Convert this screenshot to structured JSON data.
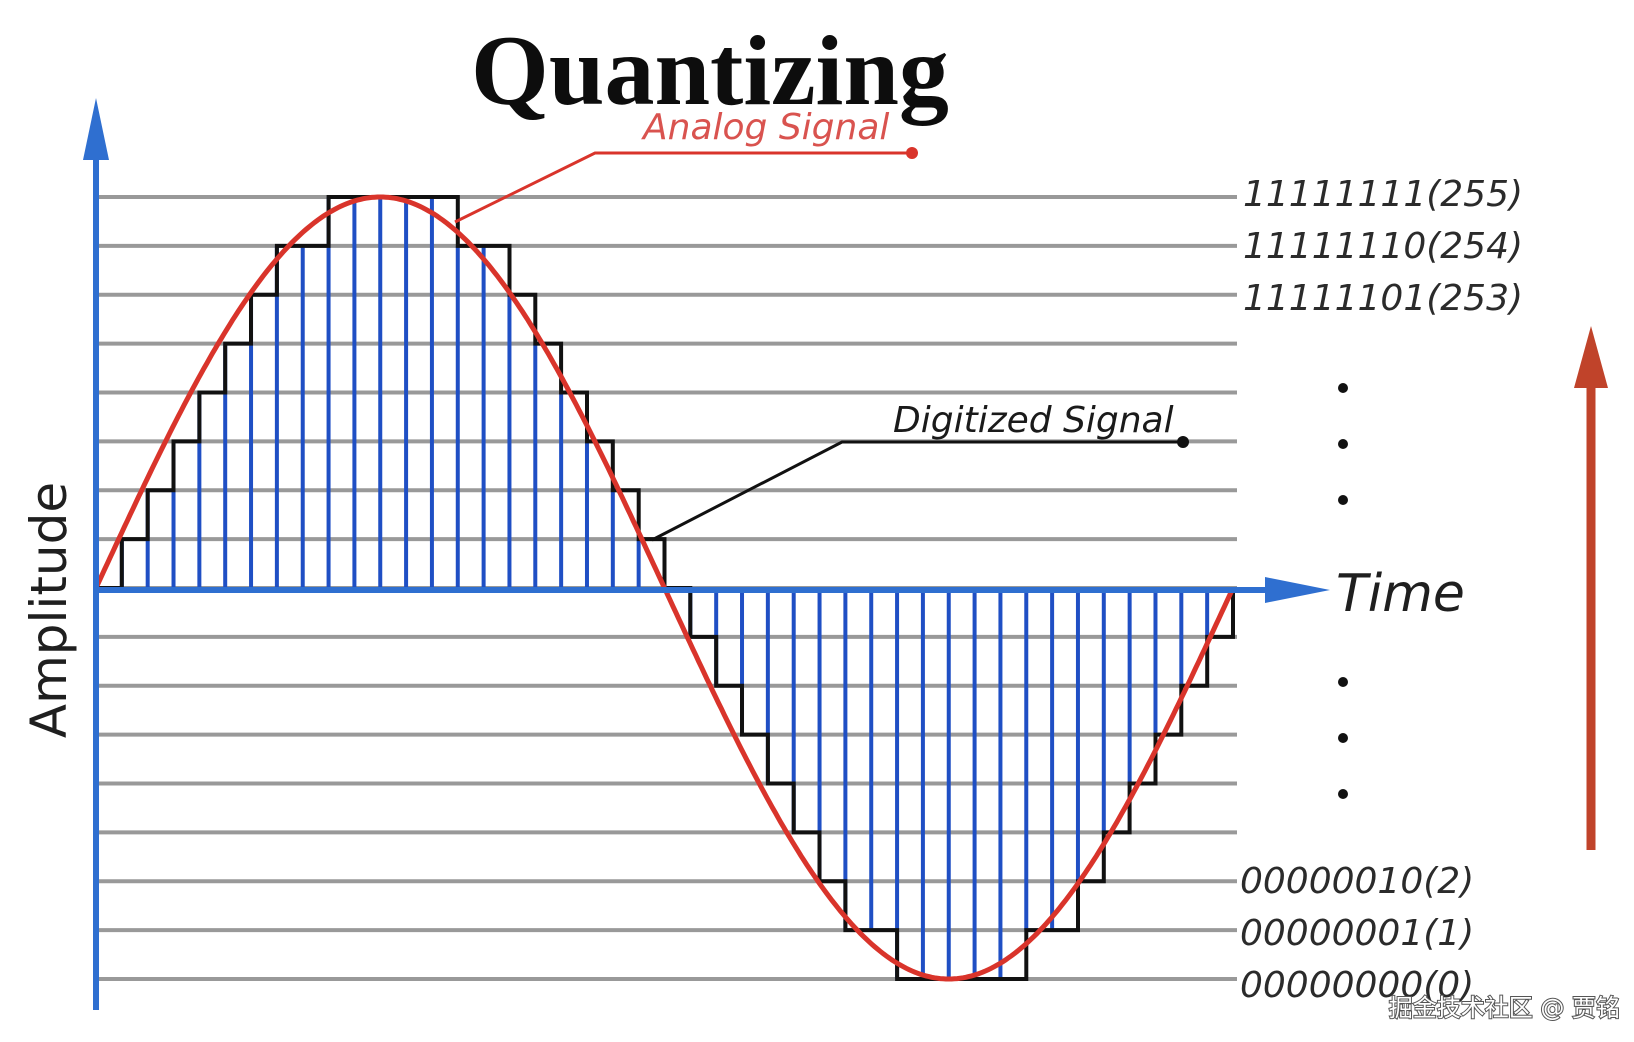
{
  "title": "Quantizing",
  "analog_label": "Analog Signal",
  "digital_label": "Digitized Signal",
  "y_axis_label": "Amplitude",
  "x_axis_label": "Time",
  "level_labels": {
    "top": [
      "11111111(255)",
      "11111110(254)",
      "11111101(253)"
    ],
    "bottom": [
      "00000010(2)",
      "00000001(1)",
      "00000000(0)"
    ]
  },
  "watermark": "掘金技术社区 @ 贾铭",
  "colors": {
    "analog": "#d9342b",
    "digital": "#111111",
    "samples": "#1f4fc4",
    "axis": "#2f6fd0",
    "gridlines": "#999999",
    "up_arrow": "#c0432a"
  },
  "signal": {
    "levels_count": 17,
    "samples_per_cycle": 44
  }
}
